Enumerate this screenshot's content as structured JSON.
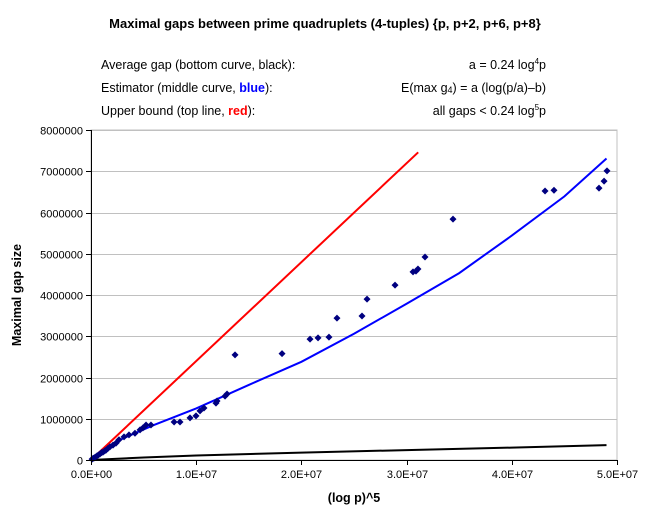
{
  "chart_data": {
    "type": "scatter",
    "title": "Maximal gaps between prime quadruplets (4-tuples) {p, p+2, p+6, p+8}",
    "legend": [
      {
        "label_pre": "Average gap (bottom curve, black):",
        "formula_pre": "a = 0.24 log",
        "formula_sup": "4",
        "formula_post": "p"
      },
      {
        "label_pre": "Estimator (middle curve, ",
        "label_colored": "blue",
        "label_post": "):",
        "formula_pre": "E(max g",
        "formula_sub": "4",
        "formula_post": ") = a (log(p/a)–b)"
      },
      {
        "label_pre": "Upper bound (top line, ",
        "label_colored": "red",
        "label_post": "):",
        "formula_pre": "all gaps < 0.24 log",
        "formula_sup": "5",
        "formula_post": "p"
      }
    ],
    "xlabel": "(log p)^5",
    "ylabel": "Maximal gap size",
    "xlim": [
      0,
      50000000
    ],
    "ylim": [
      0,
      8000000
    ],
    "x_ticks": [
      0,
      10000000,
      20000000,
      30000000,
      40000000,
      50000000
    ],
    "x_tick_labels": [
      "0.0E+00",
      "1.0E+07",
      "2.0E+07",
      "3.0E+07",
      "4.0E+07",
      "5.0E+07"
    ],
    "y_ticks": [
      0,
      1000000,
      2000000,
      3000000,
      4000000,
      5000000,
      6000000,
      7000000,
      8000000
    ],
    "y_tick_labels": [
      "0",
      "1000000",
      "2000000",
      "3000000",
      "4000000",
      "5000000",
      "6000000",
      "7000000",
      "8000000"
    ],
    "grid": "horizontal",
    "colors": {
      "points": "#000080",
      "average": "#000000",
      "estimator": "#0000ff",
      "upper": "#ff0000",
      "grid": "#c0c0c0",
      "border": "#c0c0c0"
    },
    "points": [
      [
        100000,
        20000
      ],
      [
        200000,
        40000
      ],
      [
        290000,
        50000
      ],
      [
        400000,
        70000
      ],
      [
        570000,
        100000
      ],
      [
        700000,
        120000
      ],
      [
        860000,
        150000
      ],
      [
        1000000,
        180000
      ],
      [
        1140000,
        190000
      ],
      [
        1300000,
        220000
      ],
      [
        1430000,
        240000
      ],
      [
        1600000,
        280000
      ],
      [
        1810000,
        320000
      ],
      [
        2090000,
        360000
      ],
      [
        2380000,
        410000
      ],
      [
        2660000,
        490000
      ],
      [
        3140000,
        560000
      ],
      [
        3610000,
        610000
      ],
      [
        4180000,
        650000
      ],
      [
        4660000,
        730000
      ],
      [
        4940000,
        780000
      ],
      [
        5230000,
        850000
      ],
      [
        5700000,
        850000
      ],
      [
        7900000,
        920000
      ],
      [
        8460000,
        920000
      ],
      [
        9410000,
        1020000
      ],
      [
        9980000,
        1070000
      ],
      [
        10360000,
        1190000
      ],
      [
        10740000,
        1260000
      ],
      [
        11880000,
        1380000
      ],
      [
        11980000,
        1430000
      ],
      [
        12740000,
        1550000
      ],
      [
        12930000,
        1600000
      ],
      [
        13690000,
        2550000
      ],
      [
        18160000,
        2580000
      ],
      [
        20820000,
        2930000
      ],
      [
        21580000,
        2960000
      ],
      [
        22620000,
        2980000
      ],
      [
        23380000,
        3440000
      ],
      [
        25760000,
        3490000
      ],
      [
        26240000,
        3900000
      ],
      [
        28900000,
        4240000
      ],
      [
        30610000,
        4560000
      ],
      [
        30890000,
        4580000
      ],
      [
        31080000,
        4630000
      ],
      [
        31750000,
        4920000
      ],
      [
        34410000,
        5840000
      ],
      [
        43160000,
        6520000
      ],
      [
        44010000,
        6540000
      ],
      [
        48290000,
        6590000
      ],
      [
        48770000,
        6760000
      ],
      [
        49050000,
        7010000
      ]
    ],
    "series": [
      {
        "name": "Average gap",
        "x": [
          0,
          5000000,
          10000000,
          20000000,
          30000000,
          40000000,
          49000000
        ],
        "values": [
          0,
          60000,
          110000,
          180000,
          240000,
          300000,
          360000
        ]
      },
      {
        "name": "Estimator",
        "x": [
          0,
          1000000,
          3000000,
          6000000,
          10000000,
          15000000,
          20000000,
          25000000,
          30000000,
          35000000,
          40000000,
          45000000,
          49000000
        ],
        "values": [
          0,
          230000,
          520000,
          850000,
          1250000,
          1820000,
          2380000,
          3060000,
          3790000,
          4530000,
          5440000,
          6390000,
          7310000
        ]
      },
      {
        "name": "Upper bound",
        "x": [
          0,
          31100000
        ],
        "values": [
          0,
          7460000
        ]
      }
    ]
  }
}
